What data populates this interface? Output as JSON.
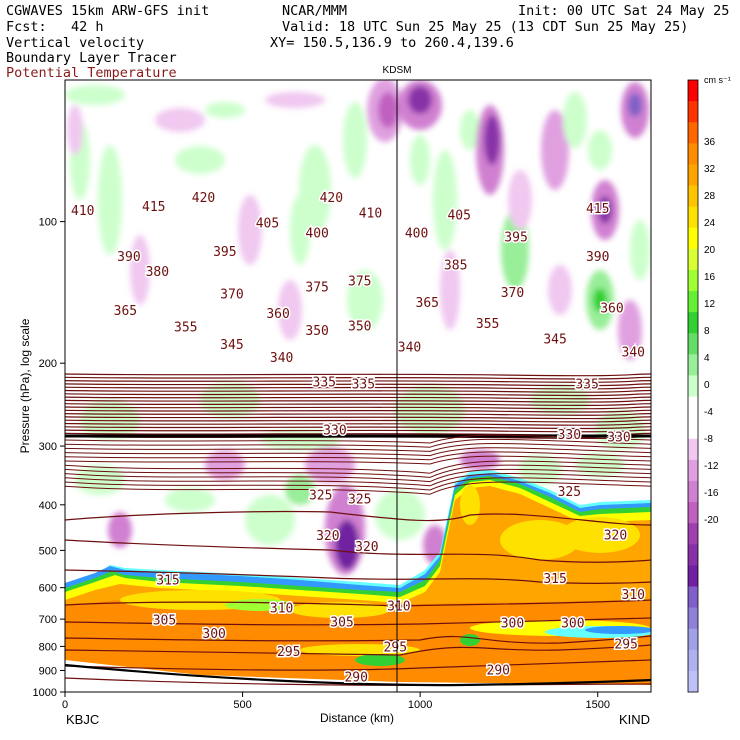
{
  "header": {
    "model": "CGWAVES 15km ARW-GFS init",
    "org": "NCAR/MMM",
    "init": "Init: 00 UTC Sat 24 May 25",
    "fcst": "Fcst:   42 h",
    "valid": "Valid: 18 UTC Sun 25 May 25 (13 CDT Sun 25 May 25)",
    "xy": "XY= 150.5,136.9 to 260.4,139.6",
    "field1": "Vertical velocity",
    "field2": "Boundary Layer Tracer",
    "field3": "Potential Temperature"
  },
  "colors": {
    "theta": "#6e0f0f",
    "field3_text": "#8b1a1a"
  },
  "chart_data": {
    "type": "heatmap",
    "title": "",
    "xlabel": "Distance (km)",
    "ylabel": "Pressure (hPa), log scale",
    "xlim": [
      0,
      1650
    ],
    "ylim": [
      1000,
      50
    ],
    "y_scale": "log",
    "x_ticks": [
      "0",
      "500",
      "1000",
      "1500"
    ],
    "x_tick_values": [
      0,
      500,
      1000,
      1500
    ],
    "y_ticks": [
      "100",
      "200",
      "300",
      "400",
      "500",
      "600",
      "700",
      "800",
      "900",
      "1000"
    ],
    "y_tick_values": [
      100,
      200,
      300,
      400,
      500,
      600,
      700,
      800,
      900,
      1000
    ],
    "endpoints": {
      "left": "KBJC",
      "right": "KIND",
      "marker": "KDSM",
      "marker_x_km": 940
    },
    "colorbar": {
      "unit": "cm s⁻¹",
      "labels": [
        "36",
        "32",
        "28",
        "24",
        "20",
        "16",
        "12",
        "8",
        "4",
        "0",
        "-4",
        "-8",
        "-12",
        "-16",
        "-20"
      ],
      "colors": [
        "#ff0000",
        "#ff3300",
        "#ff6600",
        "#ff8c00",
        "#ffa500",
        "#ffc400",
        "#ffe100",
        "#ffff00",
        "#d8ff33",
        "#a0ff33",
        "#66f033",
        "#33d033",
        "#66dd66",
        "#99ee99",
        "#ccffcc",
        "#ffffff",
        "#ffffff",
        "#f0c8f0",
        "#e0a0e0",
        "#d080d0",
        "#c060c0",
        "#a040b0",
        "#8830a8",
        "#7020a0",
        "#8060c8",
        "#9080d8",
        "#a0a0e8",
        "#b0b0f0",
        "#c0c0f8"
      ]
    },
    "theta_labels": [
      {
        "v": "410",
        "x": 50,
        "p": 95
      },
      {
        "v": "415",
        "x": 250,
        "p": 93
      },
      {
        "v": "420",
        "x": 390,
        "p": 89
      },
      {
        "v": "420",
        "x": 750,
        "p": 89
      },
      {
        "v": "410",
        "x": 860,
        "p": 96
      },
      {
        "v": "405",
        "x": 570,
        "p": 101
      },
      {
        "v": "400",
        "x": 710,
        "p": 106
      },
      {
        "v": "405",
        "x": 1110,
        "p": 97
      },
      {
        "v": "400",
        "x": 990,
        "p": 106
      },
      {
        "v": "415",
        "x": 1500,
        "p": 94
      },
      {
        "v": "395",
        "x": 450,
        "p": 116
      },
      {
        "v": "395",
        "x": 1270,
        "p": 108
      },
      {
        "v": "390",
        "x": 180,
        "p": 119
      },
      {
        "v": "390",
        "x": 1500,
        "p": 119
      },
      {
        "v": "385",
        "x": 1100,
        "p": 124
      },
      {
        "v": "380",
        "x": 260,
        "p": 128
      },
      {
        "v": "375",
        "x": 710,
        "p": 138
      },
      {
        "v": "375",
        "x": 830,
        "p": 134
      },
      {
        "v": "370",
        "x": 470,
        "p": 143
      },
      {
        "v": "370",
        "x": 1260,
        "p": 142
      },
      {
        "v": "365",
        "x": 170,
        "p": 155
      },
      {
        "v": "365",
        "x": 1020,
        "p": 149
      },
      {
        "v": "360",
        "x": 600,
        "p": 157
      },
      {
        "v": "360",
        "x": 1540,
        "p": 153
      },
      {
        "v": "355",
        "x": 340,
        "p": 168
      },
      {
        "v": "355",
        "x": 1190,
        "p": 165
      },
      {
        "v": "350",
        "x": 710,
        "p": 171
      },
      {
        "v": "350",
        "x": 830,
        "p": 167
      },
      {
        "v": "345",
        "x": 470,
        "p": 183
      },
      {
        "v": "345",
        "x": 1380,
        "p": 178
      },
      {
        "v": "340",
        "x": 610,
        "p": 195
      },
      {
        "v": "340",
        "x": 970,
        "p": 185
      },
      {
        "v": "340",
        "x": 1600,
        "p": 190
      },
      {
        "v": "335",
        "x": 730,
        "p": 220
      },
      {
        "v": "335",
        "x": 840,
        "p": 222
      },
      {
        "v": "335",
        "x": 1470,
        "p": 222
      },
      {
        "v": "330",
        "x": 760,
        "p": 278
      },
      {
        "v": "330",
        "x": 1420,
        "p": 284
      },
      {
        "v": "330",
        "x": 1560,
        "p": 288
      },
      {
        "v": "325",
        "x": 720,
        "p": 382
      },
      {
        "v": "325",
        "x": 830,
        "p": 390
      },
      {
        "v": "325",
        "x": 1420,
        "p": 376
      },
      {
        "v": "320",
        "x": 740,
        "p": 466
      },
      {
        "v": "320",
        "x": 850,
        "p": 492
      },
      {
        "v": "320",
        "x": 1550,
        "p": 465
      },
      {
        "v": "315",
        "x": 290,
        "p": 580
      },
      {
        "v": "315",
        "x": 1380,
        "p": 575
      },
      {
        "v": "310",
        "x": 610,
        "p": 665
      },
      {
        "v": "310",
        "x": 940,
        "p": 658
      },
      {
        "v": "310",
        "x": 1600,
        "p": 622
      },
      {
        "v": "305",
        "x": 280,
        "p": 705
      },
      {
        "v": "305",
        "x": 780,
        "p": 712
      },
      {
        "v": "300",
        "x": 420,
        "p": 752
      },
      {
        "v": "300",
        "x": 1260,
        "p": 715
      },
      {
        "v": "300",
        "x": 1430,
        "p": 715
      },
      {
        "v": "295",
        "x": 630,
        "p": 822
      },
      {
        "v": "295",
        "x": 930,
        "p": 805
      },
      {
        "v": "295",
        "x": 1580,
        "p": 792
      },
      {
        "v": "290",
        "x": 820,
        "p": 932
      },
      {
        "v": "290",
        "x": 1220,
        "p": 900
      }
    ]
  }
}
